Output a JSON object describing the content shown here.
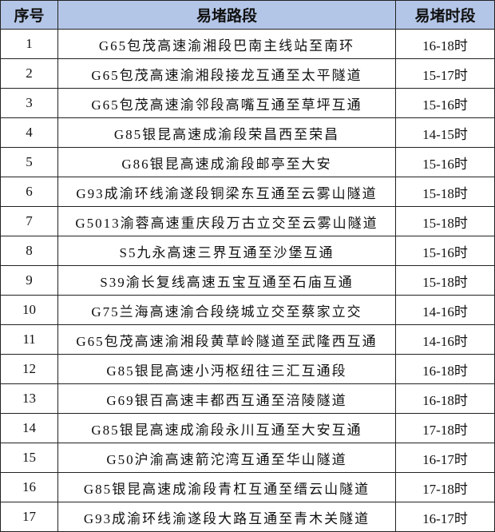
{
  "table": {
    "header_color": "#b4c6e7",
    "headers": [
      "序号",
      "易堵路段",
      "易堵时段"
    ],
    "rows": [
      {
        "no": "1",
        "section": "G65包茂高速渝湘段巴南主线站至南环",
        "time": "16-18时"
      },
      {
        "no": "2",
        "section": "G65包茂高速渝湘段接龙互通至太平隧道",
        "time": "15-17时"
      },
      {
        "no": "3",
        "section": "G65包茂高速渝邻段高嘴互通至草坪互通",
        "time": "15-16时"
      },
      {
        "no": "4",
        "section": "G85银昆高速成渝段荣昌西至荣昌",
        "time": "14-15时"
      },
      {
        "no": "5",
        "section": "G86银昆高速成渝段邮亭至大安",
        "time": "15-16时"
      },
      {
        "no": "6",
        "section": "G93成渝环线渝遂段铜梁东互通至云雾山隧道",
        "time": "15-18时"
      },
      {
        "no": "7",
        "section": "G5013渝蓉高速重庆段万古立交至云雾山隧道",
        "time": "15-18时"
      },
      {
        "no": "8",
        "section": "S5九永高速三界互通至沙堡互通",
        "time": "15-16时"
      },
      {
        "no": "9",
        "section": "S39渝长复线高速五宝互通至石庙互通",
        "time": "15-18时"
      },
      {
        "no": "10",
        "section": "G75兰海高速渝合段绕城立交至蔡家立交",
        "time": "14-16时"
      },
      {
        "no": "11",
        "section": "G65包茂高速渝湘段黄草岭隧道至武隆西互通",
        "time": "14-16时"
      },
      {
        "no": "12",
        "section": "G85银昆高速小沔枢纽往三汇互通段",
        "time": "16-18时"
      },
      {
        "no": "13",
        "section": "G69银百高速丰都西互通至涪陵隧道",
        "time": "16-18时"
      },
      {
        "no": "14",
        "section": "G85银昆高速成渝段永川互通至大安互通",
        "time": "17-18时"
      },
      {
        "no": "15",
        "section": "G50沪渝高速箭沱湾互通至华山隧道",
        "time": "16-17时"
      },
      {
        "no": "16",
        "section": "G85银昆高速成渝段青杠互通至缙云山隧道",
        "time": "17-18时"
      },
      {
        "no": "17",
        "section": "G93成渝环线渝遂段大路互通至青木关隧道",
        "time": "16-17时"
      }
    ]
  }
}
